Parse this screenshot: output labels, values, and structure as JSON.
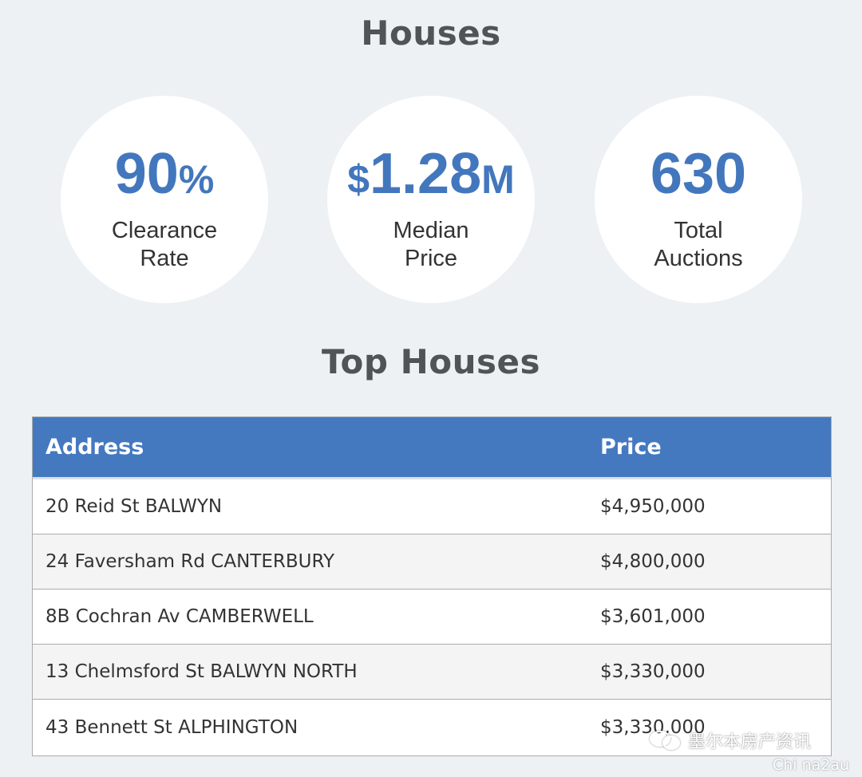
{
  "section_title": "Houses",
  "stats": [
    {
      "value_prefix": "",
      "value_main": "90",
      "value_suffix": "%",
      "label_line1": "Clearance",
      "label_line2": "Rate"
    },
    {
      "value_prefix": "$",
      "value_main": "1.28",
      "value_suffix": "M",
      "label_line1": "Median",
      "label_line2": "Price"
    },
    {
      "value_prefix": "",
      "value_main": "630",
      "value_suffix": "",
      "label_line1": "Total",
      "label_line2": "Auctions"
    }
  ],
  "top_title": "Top Houses",
  "table": {
    "headers": {
      "address": "Address",
      "price": "Price"
    },
    "rows": [
      {
        "address": "20 Reid St BALWYN",
        "price": "$4,950,000"
      },
      {
        "address": "24 Faversham Rd CANTERBURY",
        "price": "$4,800,000"
      },
      {
        "address": "8B Cochran Av CAMBERWELL",
        "price": "$3,601,000"
      },
      {
        "address": "13 Chelmsford St BALWYN NORTH",
        "price": "$3,330,000"
      },
      {
        "address": "43 Bennett St ALPHINGTON",
        "price": "$3,330,000"
      }
    ]
  },
  "watermark": {
    "text": "墨尔本房产资讯",
    "sub": "Chi na2au"
  },
  "colors": {
    "accent": "#4377bd",
    "header_bg": "#4479c0",
    "background": "#edf1f4"
  }
}
